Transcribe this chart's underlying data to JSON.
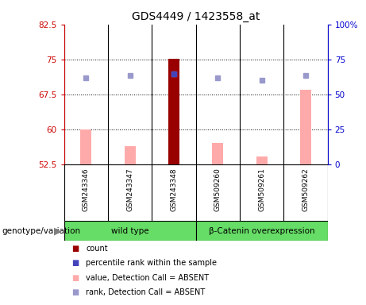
{
  "title": "GDS4449 / 1423558_at",
  "samples": [
    "GSM243346",
    "GSM243347",
    "GSM243348",
    "GSM509260",
    "GSM509261",
    "GSM509262"
  ],
  "groups": [
    {
      "label": "wild type",
      "color": "#66dd66",
      "span": [
        0,
        2
      ]
    },
    {
      "label": "β-Catenin overexpression",
      "color": "#66dd66",
      "span": [
        3,
        5
      ]
    }
  ],
  "ylim_left": [
    52.5,
    82.5
  ],
  "ylim_right": [
    0,
    100
  ],
  "yticks_left": [
    52.5,
    60.0,
    67.5,
    75.0,
    82.5
  ],
  "yticks_right": [
    0,
    25,
    50,
    75,
    100
  ],
  "ytick_labels_left": [
    "52.5",
    "60",
    "67.5",
    "75",
    "82.5"
  ],
  "ytick_labels_right": [
    "0",
    "25",
    "50",
    "75",
    "100%"
  ],
  "pink_bar_values": [
    60.0,
    56.5,
    75.2,
    57.2,
    54.2,
    68.5
  ],
  "red_bar_index": 2,
  "lavender_dot_values": [
    71.0,
    71.5,
    72.0,
    71.0,
    70.5,
    71.5
  ],
  "blue_dot_index": 2,
  "blue_dot_value": 72.0,
  "left_axis_color": "#cc0000",
  "right_axis_color": "#0000cc",
  "pink_color": "#ffaaaa",
  "red_color": "#990000",
  "blue_color": "#4444bb",
  "lavender_color": "#9999cc",
  "bg_label": "#c8c8c8",
  "bg_group": "#55ee55",
  "legend_items": [
    {
      "color": "#990000",
      "label": "count"
    },
    {
      "color": "#4444bb",
      "label": "percentile rank within the sample"
    },
    {
      "color": "#ffaaaa",
      "label": "value, Detection Call = ABSENT"
    },
    {
      "color": "#9999cc",
      "label": "rank, Detection Call = ABSENT"
    }
  ],
  "genotype_label": "genotype/variation"
}
